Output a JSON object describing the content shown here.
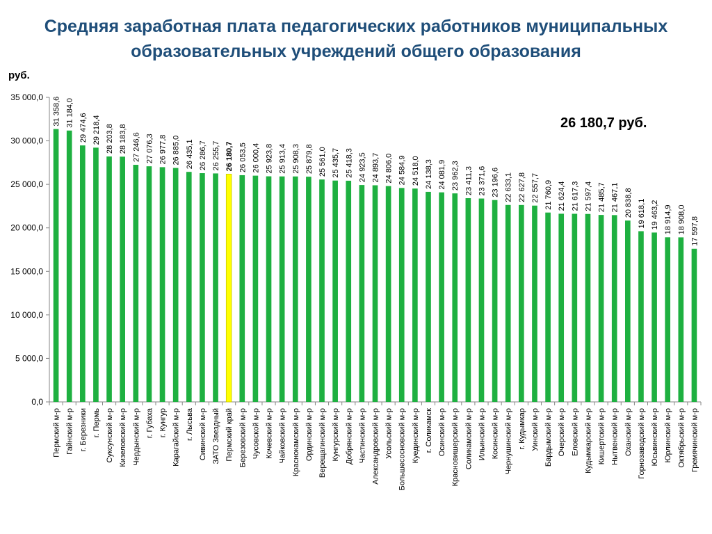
{
  "title": {
    "line1": "Средняя заработная плата педагогических работников муниципальных",
    "line2": "образовательных учреждений общего образования"
  },
  "unit_label": "руб.",
  "callout": "26 180,7 руб.",
  "colors": {
    "bar": "#1eb040",
    "highlight": "#ffff00",
    "highlight_border": "#c8c800",
    "title": "#1f4e79",
    "axis": "#868686"
  },
  "chart_data": {
    "type": "bar",
    "ylim": [
      0,
      35000
    ],
    "yticks": [
      0,
      5000,
      10000,
      15000,
      20000,
      25000,
      30000,
      35000
    ],
    "ytick_labels": [
      "0,0",
      "5 000,0",
      "10 000,0",
      "15 000,0",
      "20 000,0",
      "25 000,0",
      "30 000,0",
      "35 000,0"
    ],
    "highlight_category": "Пермский край",
    "grid": false,
    "categories": [
      "Пермский м-р",
      "Гайнский м-р",
      "г. Березники",
      "г. Пермь",
      "Суксунский м-р",
      "Кизеловский м-р",
      "Чердынский м-р",
      "г. Губаха",
      "г. Кунгур",
      "Карагайский м-р",
      "г. Лысьва",
      "Сивинский м-р",
      "ЗАТО Звездный",
      "Пермский край",
      "Березовский м-р",
      "Чусовской м-р",
      "Кочевский м-р",
      "Чайковский м-р",
      "Краснокамский м-р",
      "Ординский м-р",
      "Верещагинский м-р",
      "Кунгурский м-р",
      "Добрянский м-р",
      "Частинский м-р",
      "Александровский м-р",
      "Усольский м-р",
      "Большесосновский м-р",
      "Куединский м-р",
      "г. Соликамск",
      "Осинский м-р",
      "Красновишерский м-р",
      "Соликамский м-р",
      "Ильинский м-р",
      "Косинский м-р",
      "Чернушинский м-р",
      "г. Кудымкар",
      "Уинский м-р",
      "Бардымский м-р",
      "Очерский м-р",
      "Еловский м-р",
      "Кудымкарский м-р",
      "Кишертский м-р",
      "Нытвенский м-р",
      "Оханский м-р",
      "Горнозаводский м-р",
      "Юсьвинский м-р",
      "Юрлинский м-р",
      "Октябрьский м-р",
      "Гремячинский м-р"
    ],
    "values": [
      31358.6,
      31184.0,
      29474.6,
      29218.4,
      28203.8,
      28183.8,
      27246.6,
      27076.3,
      26977.8,
      26885.0,
      26435.1,
      26286.7,
      26255.7,
      26180.7,
      26053.5,
      26000.4,
      25923.8,
      25913.4,
      25908.3,
      25879.8,
      25561.0,
      25435.7,
      25418.3,
      24923.5,
      24893.7,
      24806.0,
      24584.9,
      24518.0,
      24138.3,
      24081.9,
      23962.3,
      23411.3,
      23371.6,
      23196.6,
      22633.1,
      22627.8,
      22557.7,
      21760.9,
      21624.4,
      21617.3,
      21597.4,
      21485.7,
      21467.1,
      20838.8,
      19618.1,
      19463.2,
      18914.9,
      18908.0,
      17597.8
    ],
    "value_labels": [
      "31 358,6",
      "31 184,0",
      "29 474,6",
      "29 218,4",
      "28 203,8",
      "28 183,8",
      "27 246,6",
      "27 076,3",
      "26 977,8",
      "26 885,0",
      "26 435,1",
      "26 286,7",
      "26 255,7",
      "26 180,7",
      "26 053,5",
      "26 000,4",
      "25 923,8",
      "25 913,4",
      "25 908,3",
      "25 879,8",
      "25 561,0",
      "25 435,7",
      "25 418,3",
      "24 923,5",
      "24 893,7",
      "24 806,0",
      "24 584,9",
      "24 518,0",
      "24 138,3",
      "24 081,9",
      "23 962,3",
      "23 411,3",
      "23 371,6",
      "23 196,6",
      "22 633,1",
      "22 627,8",
      "22 557,7",
      "21 760,9",
      "21 624,4",
      "21 617,3",
      "21 597,4",
      "21 485,7",
      "21 467,1",
      "20 838,8",
      "19 618,1",
      "19 463,2",
      "18 914,9",
      "18 908,0",
      "17 597,8"
    ]
  }
}
